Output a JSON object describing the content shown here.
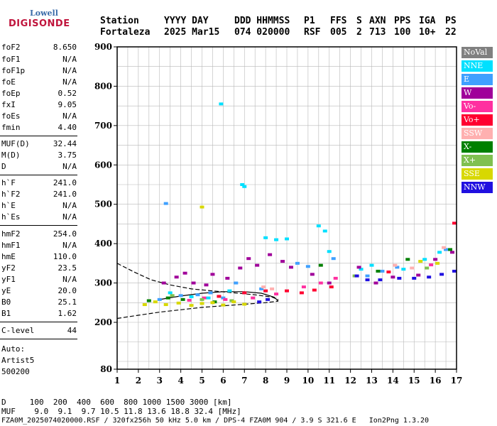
{
  "logo": {
    "line1": "Lowell",
    "line2": "DIGISONDE"
  },
  "header": {
    "row1": [
      {
        "key": "station_h",
        "text": "Station"
      },
      {
        "key": "date_h",
        "text": "YYYY DAY"
      },
      {
        "key": "time_h",
        "text": "DDD HHMMSS"
      },
      {
        "key": "p1_h",
        "text": "P1"
      },
      {
        "key": "ffs_h",
        "text": "FFS"
      },
      {
        "key": "s_h",
        "text": "S"
      },
      {
        "key": "axn_h",
        "text": "AXN"
      },
      {
        "key": "pps_h",
        "text": "PPS"
      },
      {
        "key": "iga_h",
        "text": "IGA"
      },
      {
        "key": "ps_h",
        "text": "PS"
      }
    ],
    "row2": [
      {
        "key": "station",
        "text": "Fortaleza"
      },
      {
        "key": "date",
        "text": "2025 Mar15"
      },
      {
        "key": "time",
        "text": "074 020000"
      },
      {
        "key": "p1",
        "text": "RSF"
      },
      {
        "key": "ffs",
        "text": "005"
      },
      {
        "key": "s",
        "text": "2"
      },
      {
        "key": "axn",
        "text": "713"
      },
      {
        "key": "pps",
        "text": "100"
      },
      {
        "key": "iga",
        "text": "10+"
      },
      {
        "key": "ps",
        "text": "22"
      }
    ]
  },
  "params": [
    {
      "k": "foF2",
      "v": "8.650"
    },
    {
      "k": "foF1",
      "v": "N/A"
    },
    {
      "k": "foF1p",
      "v": "N/A"
    },
    {
      "k": "foE",
      "v": "N/A"
    },
    {
      "k": "foEp",
      "v": "0.52"
    },
    {
      "k": "fxI",
      "v": "9.05"
    },
    {
      "k": "foEs",
      "v": "N/A"
    },
    {
      "k": "fmin",
      "v": "4.40"
    },
    {
      "k": "MUF(D)",
      "v": "32.44"
    },
    {
      "k": "M(D)",
      "v": "3.75"
    },
    {
      "k": "D",
      "v": "N/A"
    },
    {
      "k": "h`F",
      "v": "241.0"
    },
    {
      "k": "h`F2",
      "v": "241.0"
    },
    {
      "k": "h`E",
      "v": "N/A"
    },
    {
      "k": "h`Es",
      "v": "N/A"
    },
    {
      "k": "hmF2",
      "v": "254.0"
    },
    {
      "k": "hmF1",
      "v": "N/A"
    },
    {
      "k": "hmE",
      "v": "110.0"
    },
    {
      "k": "yF2",
      "v": "23.5"
    },
    {
      "k": "yF1",
      "v": "N/A"
    },
    {
      "k": "yE",
      "v": "20.0"
    },
    {
      "k": "B0",
      "v": "25.1"
    },
    {
      "k": "B1",
      "v": "1.62"
    }
  ],
  "clevel": {
    "k": "C-level",
    "v": "44"
  },
  "autoscale": {
    "line1": "Auto:",
    "line2": "Artist5",
    "line3": "500200"
  },
  "legend": [
    {
      "label": "NoVal",
      "color": "#808080"
    },
    {
      "label": "NNE",
      "color": "#00e0ff"
    },
    {
      "label": "E",
      "color": "#3fa0ff"
    },
    {
      "label": "W",
      "color": "#a0009a"
    },
    {
      "label": "Vo-",
      "color": "#ff30a0"
    },
    {
      "label": "Vo+",
      "color": "#ff0030"
    },
    {
      "label": "SSW",
      "color": "#ffb0b0"
    },
    {
      "label": "X-",
      "color": "#008000"
    },
    {
      "label": "X+",
      "color": "#80c050"
    },
    {
      "label": "SSE",
      "color": "#d8d800"
    },
    {
      "label": "NNW",
      "color": "#2010e0"
    }
  ],
  "footer": {
    "line1": "D     100  200  400  600  800 1000 1500 3000 [km]",
    "line2": "MUF    9.0  9.1  9.7 10.5 11.8 13.6 18.8 32.4 [MHz]",
    "line3": "FZA0M_2025074020000.RSF / 320fx256h 50 kHz 5.0 km / DPS-4 FZA0M 904 / 3.9 S 321.6 E   Ion2Png 1.3.20"
  },
  "chart_data": {
    "type": "scatter",
    "title": "",
    "xlabel": "",
    "ylabel": "",
    "xlim": [
      1,
      17
    ],
    "ylim": [
      80,
      900
    ],
    "x_ticks": [
      "1",
      "2",
      "3",
      "4",
      "5",
      "6",
      "7",
      "8",
      "9",
      "10",
      "11",
      "12",
      "13",
      "14",
      "15",
      "16",
      "17"
    ],
    "y_ticks": [
      "80",
      "200",
      "300",
      "400",
      "500",
      "600",
      "700",
      "800",
      "900"
    ],
    "grid": true,
    "legend_placement": "right",
    "series": [
      {
        "name": "NNE",
        "color": "#00e0ff",
        "points": [
          [
            3.5,
            275
          ],
          [
            4.5,
            265
          ],
          [
            5.3,
            262
          ],
          [
            6.3,
            280
          ],
          [
            6.9,
            550
          ],
          [
            7.0,
            545
          ],
          [
            8.0,
            415
          ],
          [
            8.5,
            410
          ],
          [
            9.0,
            412
          ],
          [
            10.5,
            445
          ],
          [
            10.8,
            432
          ],
          [
            11.0,
            380
          ],
          [
            12.5,
            335
          ],
          [
            13.0,
            345
          ],
          [
            14.5,
            335
          ],
          [
            15.5,
            360
          ],
          [
            16.2,
            378
          ],
          [
            5.9,
            755
          ]
        ]
      },
      {
        "name": "E",
        "color": "#3fa0ff",
        "points": [
          [
            3.0,
            258
          ],
          [
            4.0,
            268
          ],
          [
            4.8,
            270
          ],
          [
            5.4,
            275
          ],
          [
            6.0,
            262
          ],
          [
            6.6,
            300
          ],
          [
            7.8,
            285
          ],
          [
            9.5,
            350
          ],
          [
            10.0,
            342
          ],
          [
            11.2,
            362
          ],
          [
            12.8,
            318
          ],
          [
            13.5,
            330
          ],
          [
            14.2,
            340
          ],
          [
            16.5,
            385
          ],
          [
            3.3,
            502
          ]
        ]
      },
      {
        "name": "W",
        "color": "#a0009a",
        "points": [
          [
            3.2,
            300
          ],
          [
            3.8,
            315
          ],
          [
            4.2,
            325
          ],
          [
            4.6,
            300
          ],
          [
            5.2,
            295
          ],
          [
            5.5,
            322
          ],
          [
            6.2,
            312
          ],
          [
            6.8,
            338
          ],
          [
            7.2,
            362
          ],
          [
            7.6,
            345
          ],
          [
            8.2,
            372
          ],
          [
            8.8,
            355
          ],
          [
            9.2,
            340
          ],
          [
            10.2,
            322
          ],
          [
            11.0,
            300
          ],
          [
            12.4,
            340
          ],
          [
            13.2,
            300
          ],
          [
            14.0,
            315
          ],
          [
            15.2,
            320
          ],
          [
            16.0,
            360
          ],
          [
            16.8,
            378
          ]
        ]
      },
      {
        "name": "Vo-",
        "color": "#ff30a0",
        "points": [
          [
            4.4,
            256
          ],
          [
            5.1,
            262
          ],
          [
            6.1,
            258
          ],
          [
            7.4,
            262
          ],
          [
            8.5,
            272
          ],
          [
            9.8,
            290
          ],
          [
            10.6,
            300
          ],
          [
            11.3,
            312
          ],
          [
            15.8,
            346
          ]
        ]
      },
      {
        "name": "Vo+",
        "color": "#ff0030",
        "points": [
          [
            5.8,
            266
          ],
          [
            7.0,
            275
          ],
          [
            8.0,
            280
          ],
          [
            9.0,
            280
          ],
          [
            9.7,
            275
          ],
          [
            10.3,
            282
          ],
          [
            11.1,
            290
          ],
          [
            13.8,
            328
          ],
          [
            16.9,
            452
          ]
        ]
      },
      {
        "name": "SSW",
        "color": "#ffb0b0",
        "points": [
          [
            7.9,
            290
          ],
          [
            8.3,
            285
          ],
          [
            14.1,
            345
          ],
          [
            14.9,
            338
          ],
          [
            16.4,
            390
          ]
        ]
      },
      {
        "name": "X-",
        "color": "#008000",
        "points": [
          [
            2.5,
            255
          ],
          [
            3.4,
            262
          ],
          [
            4.1,
            258
          ],
          [
            5.6,
            252
          ],
          [
            10.6,
            345
          ],
          [
            13.3,
            330
          ],
          [
            14.7,
            360
          ],
          [
            16.7,
            385
          ]
        ]
      },
      {
        "name": "X+",
        "color": "#80c050",
        "points": [
          [
            3.6,
            268
          ],
          [
            5.0,
            258
          ],
          [
            6.4,
            255
          ],
          [
            12.2,
            318
          ],
          [
            15.6,
            338
          ]
        ]
      },
      {
        "name": "SSE",
        "color": "#d8d800",
        "points": [
          [
            2.3,
            245
          ],
          [
            2.8,
            252
          ],
          [
            3.3,
            245
          ],
          [
            3.9,
            249
          ],
          [
            4.5,
            243
          ],
          [
            5.0,
            248
          ],
          [
            5.5,
            250
          ],
          [
            6.0,
            244
          ],
          [
            6.5,
            252
          ],
          [
            7.0,
            246
          ],
          [
            15.3,
            355
          ],
          [
            16.1,
            350
          ],
          [
            5.0,
            493
          ]
        ]
      },
      {
        "name": "NNW",
        "color": "#2010e0",
        "points": [
          [
            7.7,
            252
          ],
          [
            8.1,
            258
          ],
          [
            12.3,
            318
          ],
          [
            12.8,
            308
          ],
          [
            13.4,
            308
          ],
          [
            14.3,
            312
          ],
          [
            15.0,
            312
          ],
          [
            15.7,
            315
          ],
          [
            16.3,
            322
          ],
          [
            16.9,
            330
          ]
        ]
      }
    ],
    "profile_curves": [
      {
        "style": "dashed",
        "points": [
          [
            1.0,
            350
          ],
          [
            1.8,
            328
          ],
          [
            2.6,
            308
          ],
          [
            3.5,
            295
          ],
          [
            4.5,
            285
          ],
          [
            5.5,
            280
          ],
          [
            6.5,
            275
          ],
          [
            7.5,
            270
          ],
          [
            8.3,
            264
          ],
          [
            8.6,
            258
          ]
        ]
      },
      {
        "style": "dashed",
        "points": [
          [
            1.0,
            210
          ],
          [
            2.0,
            218
          ],
          [
            3.0,
            226
          ],
          [
            4.0,
            232
          ],
          [
            5.0,
            238
          ],
          [
            6.0,
            242
          ],
          [
            7.0,
            246
          ],
          [
            8.0,
            250
          ],
          [
            8.6,
            254
          ]
        ]
      },
      {
        "style": "solid",
        "points": [
          [
            3.0,
            258
          ],
          [
            4.0,
            267
          ],
          [
            5.0,
            274
          ],
          [
            6.0,
            278
          ],
          [
            7.0,
            278
          ],
          [
            7.8,
            274
          ],
          [
            8.4,
            264
          ],
          [
            8.6,
            254
          ]
        ]
      }
    ]
  }
}
